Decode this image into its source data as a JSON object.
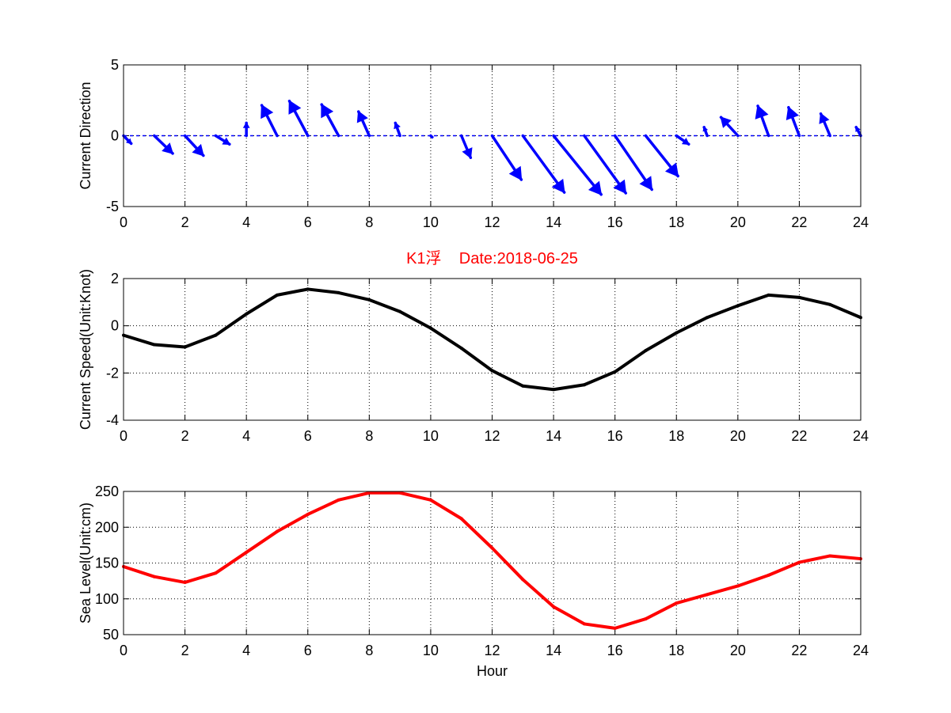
{
  "chart_data": [
    {
      "type": "quiver",
      "title": "",
      "xlabel": "",
      "ylabel": "Current Direction",
      "xlim": [
        0,
        24
      ],
      "ylim": [
        -5,
        5
      ],
      "xticks": [
        "0",
        "2",
        "4",
        "6",
        "8",
        "10",
        "12",
        "14",
        "16",
        "18",
        "20",
        "22",
        "24"
      ],
      "yticks": [
        "-5",
        "0",
        "5"
      ],
      "grid": true,
      "color": "#0000ff",
      "x": [
        0,
        1,
        2,
        3,
        4,
        5,
        6,
        7,
        8,
        9,
        10,
        11,
        12,
        13,
        14,
        15,
        16,
        17,
        18,
        19,
        20,
        21,
        22,
        23,
        24
      ],
      "u": [
        0.25,
        0.6,
        0.6,
        0.45,
        0.0,
        -0.5,
        -0.6,
        -0.55,
        -0.35,
        -0.15,
        0.05,
        0.3,
        0.95,
        1.35,
        1.55,
        1.35,
        1.2,
        1.05,
        0.4,
        -0.1,
        -0.55,
        -0.35,
        -0.35,
        -0.3,
        -0.15
      ],
      "v": [
        -0.55,
        -1.25,
        -1.4,
        -0.6,
        0.9,
        2.15,
        2.45,
        2.2,
        1.7,
        0.9,
        -0.1,
        -1.55,
        -3.1,
        -4.0,
        -4.15,
        -4.05,
        -3.8,
        -2.85,
        -0.6,
        0.6,
        1.3,
        2.1,
        2.0,
        1.55,
        0.6
      ]
    },
    {
      "type": "line",
      "title": "K1浮    Date:2018-06-25",
      "xlabel": "",
      "ylabel": "Current Speed(Unit:Knot)",
      "xlim": [
        0,
        24
      ],
      "ylim": [
        -4,
        2
      ],
      "xticks": [
        "0",
        "2",
        "4",
        "6",
        "8",
        "10",
        "12",
        "14",
        "16",
        "18",
        "20",
        "22",
        "24"
      ],
      "yticks": [
        "-4",
        "-2",
        "0",
        "2"
      ],
      "grid": true,
      "color": "#000000",
      "title_color": "#ff0000",
      "x": [
        0,
        1,
        2,
        3,
        4,
        5,
        6,
        7,
        8,
        9,
        10,
        11,
        12,
        13,
        14,
        15,
        16,
        17,
        18,
        19,
        20,
        21,
        22,
        23,
        24
      ],
      "y": [
        -0.4,
        -0.8,
        -0.9,
        -0.4,
        0.5,
        1.3,
        1.55,
        1.4,
        1.1,
        0.6,
        -0.1,
        -0.95,
        -1.9,
        -2.55,
        -2.7,
        -2.5,
        -1.95,
        -1.05,
        -0.3,
        0.35,
        0.85,
        1.3,
        1.2,
        0.9,
        0.35
      ]
    },
    {
      "type": "line",
      "title": "",
      "xlabel": "Hour",
      "ylabel": "Sea Level(Unit:cm)",
      "xlim": [
        0,
        24
      ],
      "ylim": [
        50,
        250
      ],
      "xticks": [
        "0",
        "2",
        "4",
        "6",
        "8",
        "10",
        "12",
        "14",
        "16",
        "18",
        "20",
        "22",
        "24"
      ],
      "yticks": [
        "50",
        "100",
        "150",
        "200",
        "250"
      ],
      "grid": true,
      "color": "#ff0000",
      "x": [
        0,
        1,
        2,
        3,
        4,
        5,
        6,
        7,
        8,
        9,
        10,
        11,
        12,
        13,
        14,
        15,
        16,
        17,
        18,
        19,
        20,
        21,
        22,
        23,
        24
      ],
      "y": [
        145,
        131,
        123,
        136,
        165,
        194,
        218,
        238,
        248,
        248,
        238,
        212,
        171,
        127,
        89,
        65,
        59,
        72,
        94,
        106,
        118,
        133,
        151,
        160,
        156
      ]
    }
  ]
}
